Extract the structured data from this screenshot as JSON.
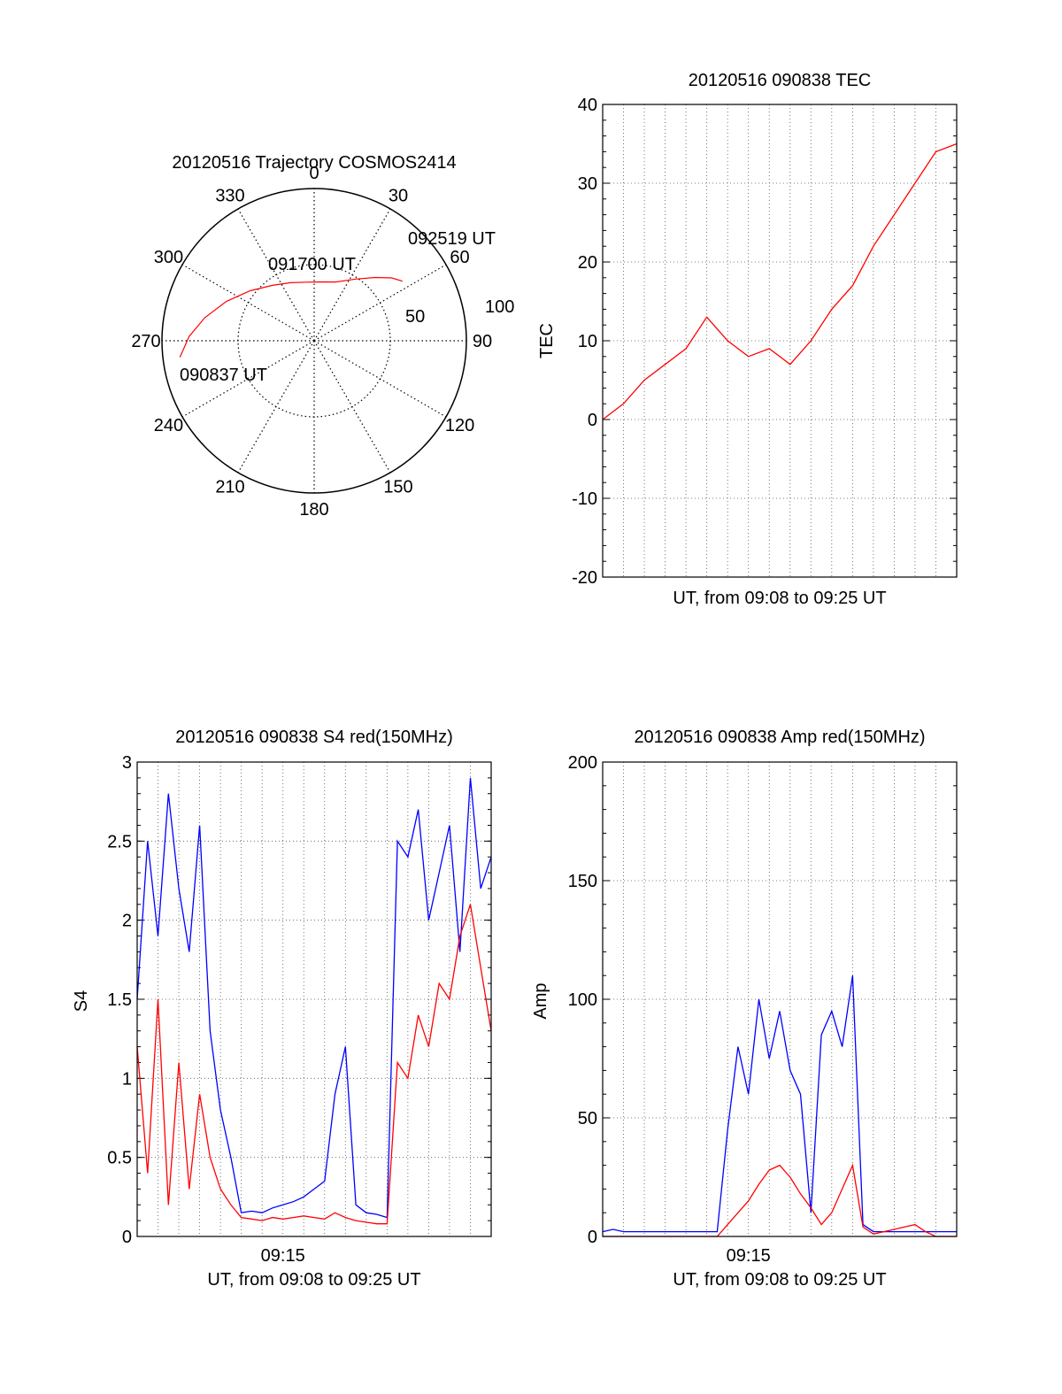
{
  "chart_data": [
    {
      "type": "polar",
      "title": "20120516 Trajectory COSMOS2414",
      "azimuth_labels": [
        "0",
        "30",
        "60",
        "90",
        "120",
        "150",
        "180",
        "210",
        "240",
        "270",
        "300",
        "330"
      ],
      "radial_labels": [
        "50",
        "100"
      ],
      "trajectory": {
        "color": "#ff0000",
        "points": [
          {
            "az": 263,
            "el": 10
          },
          {
            "az": 272,
            "el": 16
          },
          {
            "az": 282,
            "el": 24
          },
          {
            "az": 294,
            "el": 33
          },
          {
            "az": 308,
            "el": 42
          },
          {
            "az": 323,
            "el": 49
          },
          {
            "az": 338,
            "el": 53
          },
          {
            "az": 352,
            "el": 55
          },
          {
            "az": 6,
            "el": 55
          },
          {
            "az": 20,
            "el": 53
          },
          {
            "az": 34,
            "el": 46
          },
          {
            "az": 44,
            "el": 38
          },
          {
            "az": 51,
            "el": 31
          },
          {
            "az": 56,
            "el": 27
          }
        ]
      },
      "annotations": [
        "092519 UT",
        "091700 UT",
        "090837 UT"
      ]
    },
    {
      "type": "line",
      "title": "20120516 090838 TEC",
      "xlabel": "UT, from 09:08 to 09:25 UT",
      "ylabel": "TEC",
      "ylim": [
        -20,
        40
      ],
      "yticks": [
        "-20",
        "-10",
        "0",
        "10",
        "20",
        "30",
        "40"
      ],
      "xlim": [
        0,
        17
      ],
      "series": [
        {
          "color": "#ff0000",
          "x": [
            0,
            1,
            2,
            3,
            4,
            5,
            6,
            7,
            8,
            9,
            10,
            11,
            12,
            13,
            14,
            15,
            16,
            17
          ],
          "values": [
            0,
            2,
            5,
            7,
            9,
            13,
            10,
            8,
            9,
            7,
            10,
            14,
            17,
            22,
            26,
            30,
            34,
            35
          ]
        }
      ]
    },
    {
      "type": "line",
      "title": "20120516 090838 S4 red(150MHz)",
      "xlabel": "UT, from 09:08 to 09:25 UT",
      "ylabel": "S4",
      "ylim": [
        0,
        3
      ],
      "yticks": [
        "0",
        "0.5",
        "1",
        "1.5",
        "2",
        "2.5",
        "3"
      ],
      "xticks": [
        "09:15"
      ],
      "xlim": [
        0,
        17
      ],
      "series": [
        {
          "color": "#0000ff",
          "x": [
            0,
            0.5,
            1,
            1.5,
            2,
            2.5,
            3,
            3.5,
            4,
            4.5,
            5,
            5.5,
            6,
            6.5,
            7,
            7.5,
            8,
            8.5,
            9,
            9.5,
            10,
            10.5,
            11,
            11.5,
            12,
            12.5,
            13,
            13.5,
            14,
            14.5,
            15,
            15.5,
            16,
            16.5,
            17
          ],
          "values": [
            1.5,
            2.5,
            1.9,
            2.8,
            2.2,
            1.8,
            2.6,
            1.3,
            0.8,
            0.5,
            0.15,
            0.16,
            0.15,
            0.18,
            0.2,
            0.22,
            0.25,
            0.3,
            0.35,
            0.9,
            1.2,
            0.2,
            0.15,
            0.14,
            0.12,
            2.5,
            2.4,
            2.7,
            2.0,
            2.3,
            2.6,
            1.8,
            2.9,
            2.2,
            2.4
          ]
        },
        {
          "color": "#ff0000",
          "x": [
            0,
            0.5,
            1,
            1.5,
            2,
            2.5,
            3,
            3.5,
            4,
            4.5,
            5,
            5.5,
            6,
            6.5,
            7,
            7.5,
            8,
            8.5,
            9,
            9.5,
            10,
            10.5,
            11,
            11.5,
            12,
            12.5,
            13,
            13.5,
            14,
            14.5,
            15,
            15.5,
            16,
            16.5,
            17
          ],
          "values": [
            1.2,
            0.4,
            1.5,
            0.2,
            1.1,
            0.3,
            0.9,
            0.5,
            0.3,
            0.2,
            0.12,
            0.11,
            0.1,
            0.12,
            0.11,
            0.12,
            0.13,
            0.12,
            0.11,
            0.15,
            0.12,
            0.1,
            0.09,
            0.08,
            0.08,
            1.1,
            1.0,
            1.4,
            1.2,
            1.6,
            1.5,
            1.9,
            2.1,
            1.7,
            1.3
          ]
        }
      ]
    },
    {
      "type": "line",
      "title": "20120516 090838 Amp red(150MHz)",
      "xlabel": "UT, from 09:08 to 09:25 UT",
      "ylabel": "Amp",
      "ylim": [
        0,
        200
      ],
      "yticks": [
        "0",
        "50",
        "100",
        "150",
        "200"
      ],
      "xticks": [
        "09:15"
      ],
      "xlim": [
        0,
        17
      ],
      "series": [
        {
          "color": "#0000ff",
          "x": [
            0,
            0.5,
            1,
            1.5,
            2,
            2.5,
            3,
            3.5,
            4,
            4.5,
            5,
            5.5,
            6,
            6.5,
            7,
            7.5,
            8,
            8.5,
            9,
            9.5,
            10,
            10.5,
            11,
            11.5,
            12,
            12.5,
            13,
            13.5,
            14,
            14.5,
            15,
            15.5,
            16,
            16.5,
            17
          ],
          "values": [
            2,
            3,
            2,
            2,
            2,
            2,
            2,
            2,
            2,
            2,
            2,
            2,
            45,
            80,
            60,
            100,
            75,
            95,
            70,
            60,
            10,
            85,
            95,
            80,
            110,
            5,
            2,
            2,
            2,
            2,
            2,
            2,
            2,
            2,
            2
          ]
        },
        {
          "color": "#ff0000",
          "x": [
            0,
            0.5,
            1,
            1.5,
            2,
            2.5,
            3,
            3.5,
            4,
            4.5,
            5,
            5.5,
            6,
            6.5,
            7,
            7.5,
            8,
            8.5,
            9,
            9.5,
            10,
            10.5,
            11,
            11.5,
            12,
            12.5,
            13,
            13.5,
            14,
            14.5,
            15,
            15.5,
            16,
            16.5,
            17
          ],
          "values": [
            0,
            0,
            0,
            0,
            0,
            0,
            0,
            0,
            0,
            0,
            0,
            0,
            5,
            10,
            15,
            22,
            28,
            30,
            25,
            18,
            12,
            5,
            10,
            20,
            30,
            4,
            1,
            2,
            3,
            4,
            5,
            2,
            0,
            0,
            0
          ]
        }
      ]
    }
  ]
}
